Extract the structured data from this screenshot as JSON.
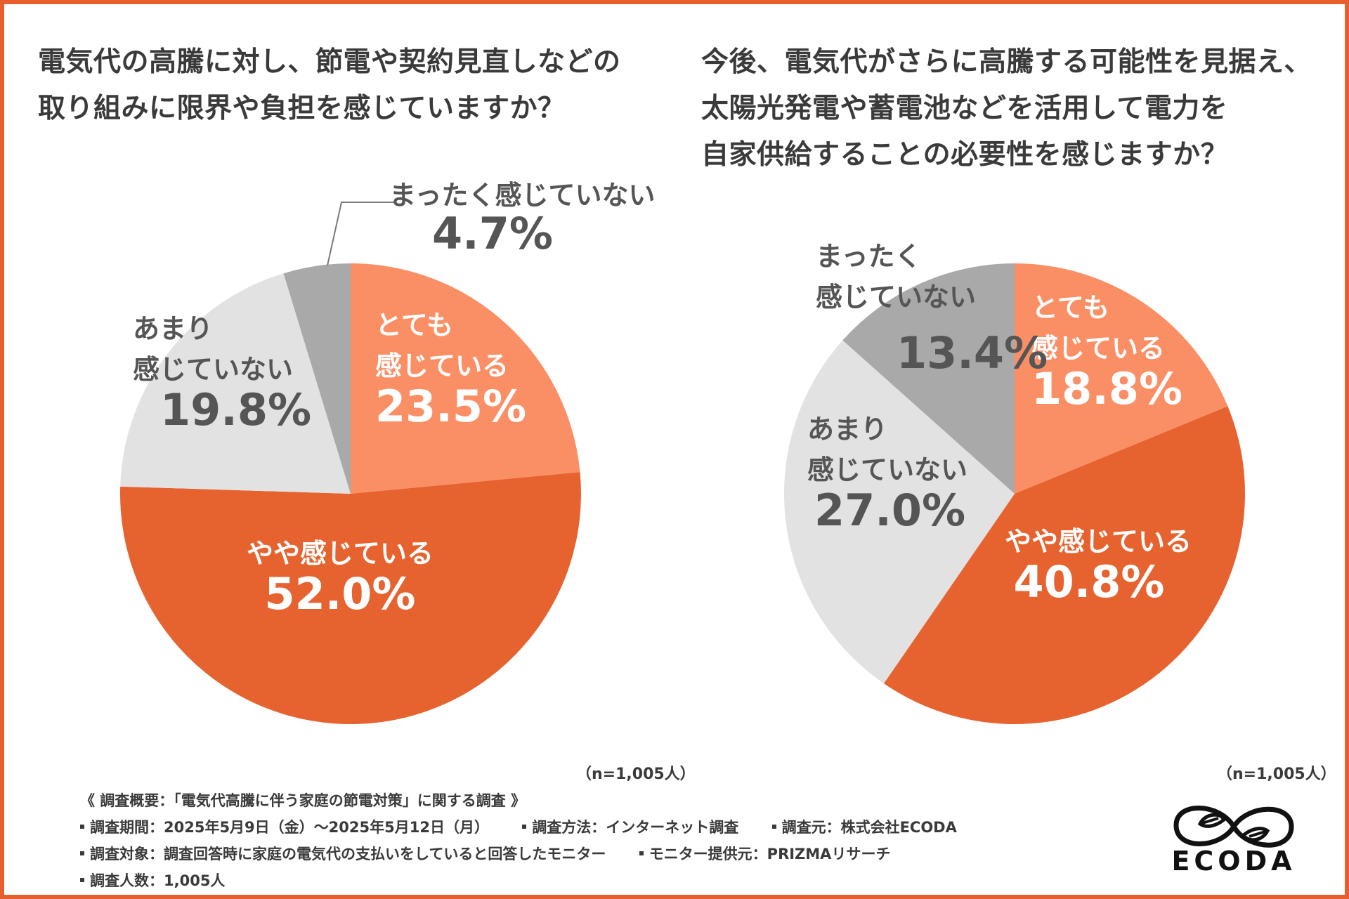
{
  "chart_data": [
    {
      "type": "pie",
      "title": "電気代の高騰に対し、節電や契約見直しなどの取り組みに限界や負担を感じていますか？",
      "title_lines": [
        "電気代の高騰に対し、節電や契約見直しなどの",
        "取り組みに限界や負担を感じていますか？"
      ],
      "sample_size": "（n=1,005人）",
      "slices": [
        {
          "label_lines": [
            "とても",
            "感じている"
          ],
          "value": 23.5,
          "value_label": "23.5%",
          "color": "#fa8f66",
          "text_color": "#ffffff"
        },
        {
          "label_lines": [
            "やや感じている"
          ],
          "value": 52.0,
          "value_label": "52.0%",
          "color": "#e66330",
          "text_color": "#ffffff"
        },
        {
          "label_lines": [
            "あまり",
            "感じていない"
          ],
          "value": 19.8,
          "value_label": "19.8%",
          "color": "#e2e2e2",
          "text_color": "#555555"
        },
        {
          "label_lines": [
            "まったく感じていない"
          ],
          "value": 4.7,
          "value_label": "4.7%",
          "color": "#a9a9a9",
          "text_color": "#555555"
        }
      ]
    },
    {
      "type": "pie",
      "title": "今後、電気代がさらに高騰する可能性を見据え、太陽光発電や蓄電池などを活用して電力を自家供給することの必要性を感じますか？",
      "title_lines": [
        "今後、電気代がさらに高騰する可能性を見据え、",
        "太陽光発電や蓄電池などを活用して電力を",
        "自家供給することの必要性を感じますか？"
      ],
      "sample_size": "（n=1,005人）",
      "slices": [
        {
          "label_lines": [
            "とても",
            "感じている"
          ],
          "value": 18.8,
          "value_label": "18.8%",
          "color": "#fa8f66",
          "text_color": "#ffffff"
        },
        {
          "label_lines": [
            "やや感じている"
          ],
          "value": 40.8,
          "value_label": "40.8%",
          "color": "#e66330",
          "text_color": "#ffffff"
        },
        {
          "label_lines": [
            "あまり",
            "感じていない"
          ],
          "value": 27.0,
          "value_label": "27.0%",
          "color": "#e2e2e2",
          "text_color": "#555555"
        },
        {
          "label_lines": [
            "まったく",
            "感じていない"
          ],
          "value": 13.4,
          "value_label": "13.4%",
          "color": "#a9a9a9",
          "text_color": "#555555"
        }
      ]
    }
  ],
  "survey": {
    "heading": "《 調査概要：「電気代高騰に伴う家庭の節電対策」に関する調査 》",
    "period": "調査期間：2025年5月9日（金）～2025年5月12日（月）",
    "method": "調査方法：インターネット調査",
    "source": "調査元：株式会社ECODA",
    "target": "調査対象：調査回答時に家庭の電気代の支払いをしていると回答したモニター",
    "provider": "モニター提供元：PRIZMAリサーチ",
    "count": "調査人数：1,005人"
  },
  "logo": {
    "text": "ECODA",
    "icon": "infinity-leaf-icon"
  },
  "colors": {
    "border": "#e65f2d",
    "text": "#3a3a3a"
  }
}
